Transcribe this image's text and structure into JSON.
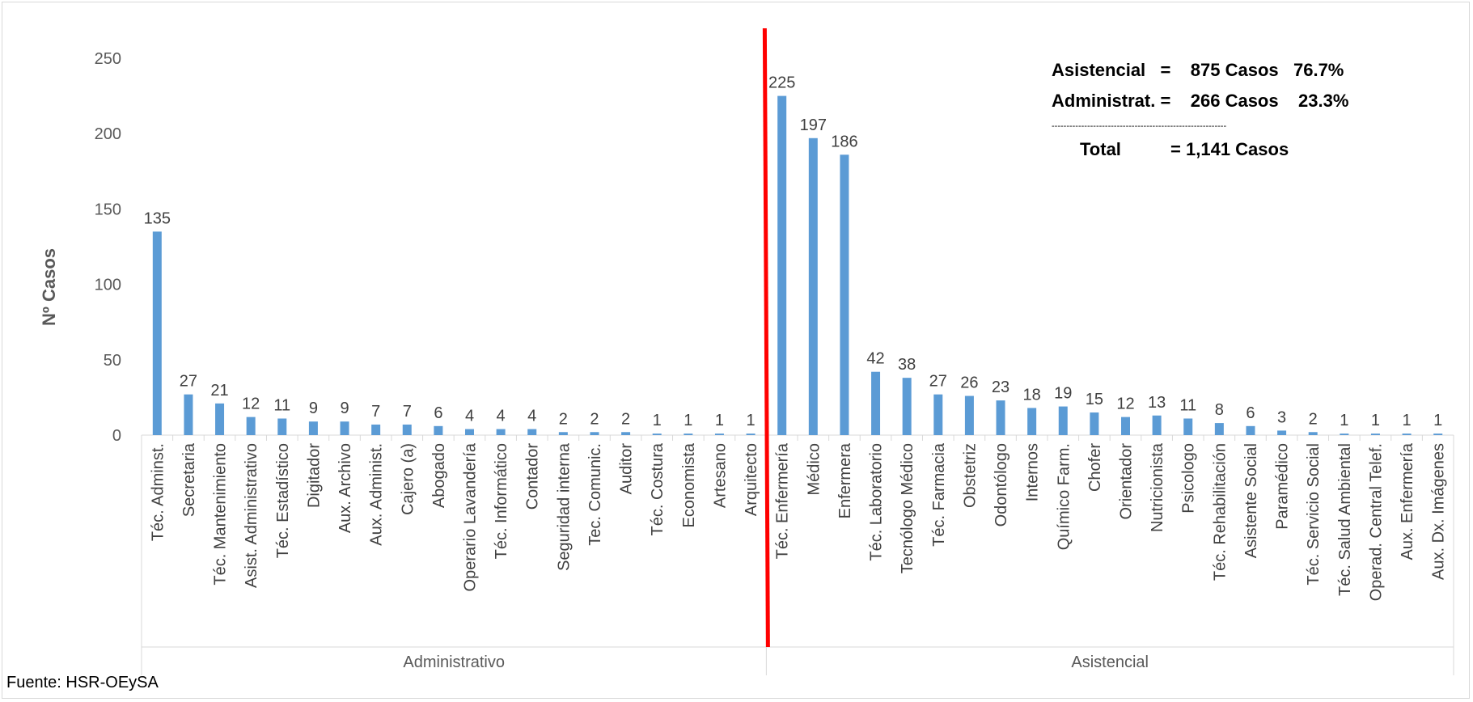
{
  "chart_data": {
    "type": "bar",
    "ylabel": "Nº Casos",
    "ylim": [
      0,
      250
    ],
    "yticks": [
      0,
      50,
      100,
      150,
      200,
      250
    ],
    "grid": false,
    "bar_color": "#5b9bd5",
    "divider_color": "#ff0000",
    "groups": [
      {
        "name": "Administrativo",
        "categories": [
          "Téc. Adminst.",
          "Secretaria",
          "Téc. Mantenimiento",
          "Asist. Administrativo",
          "Téc. Estadístico",
          "Digitador",
          "Aux. Archivo",
          "Aux. Administ.",
          "Cajero (a)",
          "Abogado",
          "Operario Lavandería",
          "Téc. Informático",
          "Contador",
          "Seguridad interna",
          "Tec. Comunic.",
          "Auditor",
          "Téc. Costura",
          "Economista",
          "Artesano",
          "Arquitecto"
        ],
        "values": [
          135,
          27,
          21,
          12,
          11,
          9,
          9,
          7,
          7,
          6,
          4,
          4,
          4,
          2,
          2,
          2,
          1,
          1,
          1,
          1
        ]
      },
      {
        "name": "Asistencial",
        "categories": [
          "Téc. Enfermería",
          "Médico",
          "Enfermera",
          "Téc. Laboratorio",
          "Tecnólogo Médico",
          "Téc. Farmacia",
          "Obstetriz",
          "Odontólogo",
          "Internos",
          "Químico Farm.",
          "Chofer",
          "Orientador",
          "Nutricionista",
          "Psicologo",
          "Téc. Rehabilitación",
          "Asistente Social",
          "Paramédico",
          "Téc. Servicio Social",
          "Téc. Salud Ambiental",
          "Operad. Central Telef.",
          "Aux. Enfermería",
          "Aux. Dx. Imágenes"
        ],
        "values": [
          225,
          197,
          186,
          42,
          38,
          27,
          26,
          23,
          18,
          19,
          15,
          12,
          13,
          11,
          8,
          6,
          3,
          2,
          1,
          1,
          1,
          1
        ]
      }
    ]
  },
  "summary": {
    "line1": "Asistencial   =    875 Casos   76.7%",
    "line2": "Administrat. =    266 Casos    23.3%",
    "separator": "-----------------------------------------------------------",
    "line3": "Total          = 1,141 Casos"
  },
  "source": "Fuente:  HSR-OEySA"
}
